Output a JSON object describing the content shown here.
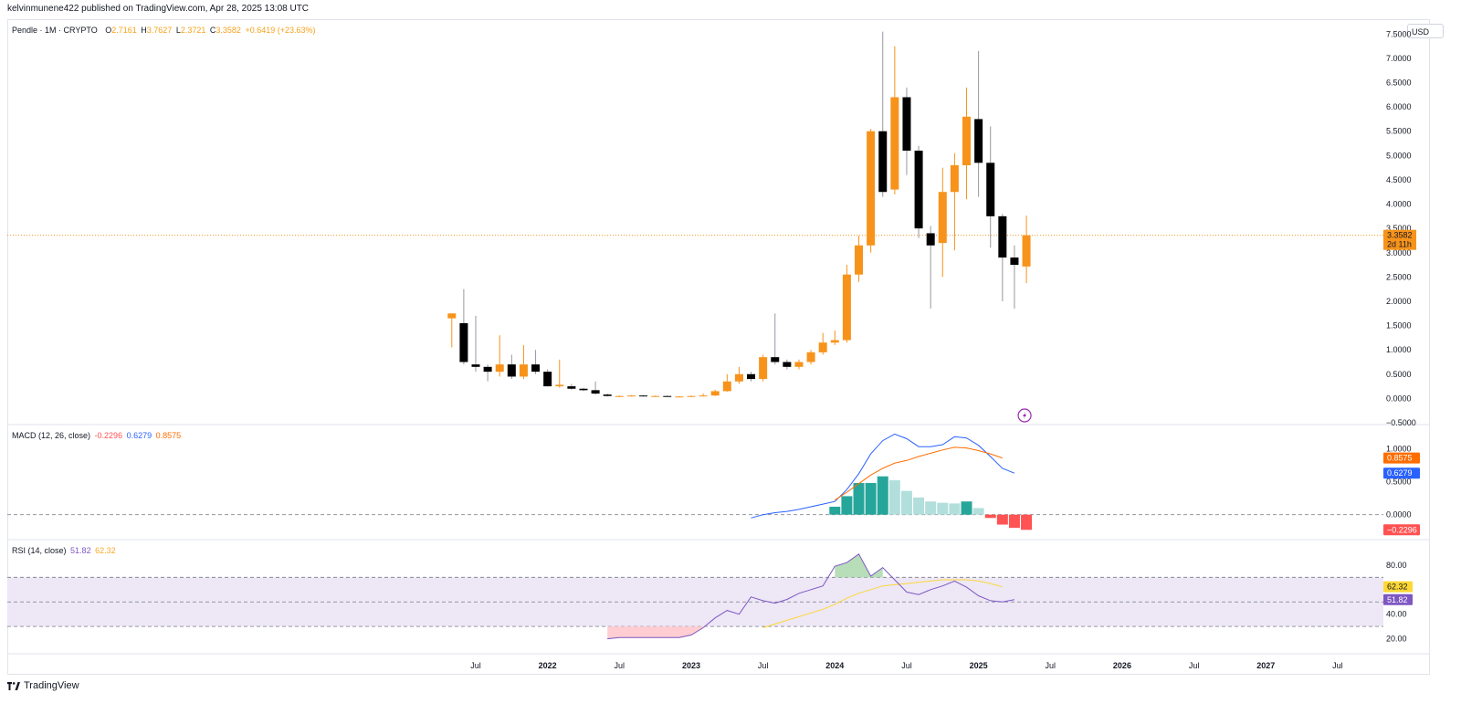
{
  "header": {
    "published_line": "kelvinmunene422 published on TradingView.com, Apr 28, 2025 13:08 UTC"
  },
  "legend": {
    "symbol": "Pendle · 1M · CRYPTO",
    "o_label": "O",
    "o_value": "2.7161",
    "h_label": "H",
    "h_value": "3.7627",
    "l_label": "L",
    "l_value": "2.3721",
    "c_label": "C",
    "c_value": "3.3582",
    "change": "+0.6419 (+23.63%)"
  },
  "currency_button": "USD",
  "price_axis_labels": [
    "7.5000",
    "7.0000",
    "6.5000",
    "6.0000",
    "5.5000",
    "5.0000",
    "4.5000",
    "4.0000",
    "3.5000",
    "3.0000",
    "2.5000",
    "2.0000",
    "1.5000",
    "1.0000",
    "0.5000",
    "0.0000",
    "−0.5000"
  ],
  "last_price_tag": {
    "price": "3.3582",
    "countdown": "2d 11h"
  },
  "macd": {
    "title": "MACD (12, 26, close)",
    "hist_value": "-0.2296",
    "macd_value": "0.6279",
    "signal_value": "0.8575",
    "axis_labels": [
      "1.0000",
      "0.5000",
      "0.0000"
    ],
    "tag_signal": "0.8575",
    "tag_macd": "0.6279",
    "tag_hist": "−0.2296"
  },
  "rsi": {
    "title": "RSI (14, close)",
    "rsi_value": "51.82",
    "ma_value": "62.32",
    "axis_labels": [
      "80.00",
      "40.00",
      "20.00"
    ],
    "tag_ma": "62.32",
    "tag_rsi": "51.82"
  },
  "time_axis_labels": [
    "Jul",
    "2022",
    "Jul",
    "2023",
    "Jul",
    "2024",
    "Jul",
    "2025",
    "Jul",
    "2026",
    "Jul",
    "2027",
    "Jul"
  ],
  "footer": {
    "brand": "TradingView"
  },
  "colors": {
    "up": "#f7931a",
    "down": "#000000",
    "macd_line": "#2962ff",
    "signal_line": "#ff6d00",
    "hist_pos_strong": "#26a69a",
    "hist_pos_weak": "#b2dfdb",
    "hist_neg": "#ff5252",
    "rsi_line": "#7e57c2",
    "rsi_ma": "#fdd835",
    "rsi_band": "#ede7f6"
  },
  "chart_data": [
    {
      "type": "candlestick",
      "title": "Pendle · 1M · CRYPTO",
      "xlabel": "",
      "ylabel": "",
      "ylim": [
        -0.5,
        7.75
      ],
      "candles": [
        {
          "t": "2021-05",
          "o": 1.65,
          "h": 1.75,
          "l": 1.05,
          "c": 1.75
        },
        {
          "t": "2021-06",
          "o": 1.55,
          "h": 2.25,
          "l": 0.7,
          "c": 0.75
        },
        {
          "t": "2021-07",
          "o": 0.7,
          "h": 1.7,
          "l": 0.55,
          "c": 0.65
        },
        {
          "t": "2021-08",
          "o": 0.65,
          "h": 0.7,
          "l": 0.35,
          "c": 0.55
        },
        {
          "t": "2021-09",
          "o": 0.55,
          "h": 1.3,
          "l": 0.45,
          "c": 0.7
        },
        {
          "t": "2021-10",
          "o": 0.7,
          "h": 0.9,
          "l": 0.4,
          "c": 0.45
        },
        {
          "t": "2021-11",
          "o": 0.45,
          "h": 1.1,
          "l": 0.4,
          "c": 0.7
        },
        {
          "t": "2021-12",
          "o": 0.7,
          "h": 1.0,
          "l": 0.5,
          "c": 0.55
        },
        {
          "t": "2022-01",
          "o": 0.55,
          "h": 0.6,
          "l": 0.25,
          "c": 0.25
        },
        {
          "t": "2022-02",
          "o": 0.25,
          "h": 0.8,
          "l": 0.22,
          "c": 0.28
        },
        {
          "t": "2022-03",
          "o": 0.25,
          "h": 0.3,
          "l": 0.18,
          "c": 0.2
        },
        {
          "t": "2022-04",
          "o": 0.2,
          "h": 0.22,
          "l": 0.15,
          "c": 0.17
        },
        {
          "t": "2022-05",
          "o": 0.17,
          "h": 0.35,
          "l": 0.08,
          "c": 0.1
        },
        {
          "t": "2022-06",
          "o": 0.08,
          "h": 0.1,
          "l": 0.04,
          "c": 0.05
        },
        {
          "t": "2022-07",
          "o": 0.04,
          "h": 0.06,
          "l": 0.03,
          "c": 0.05
        },
        {
          "t": "2022-08",
          "o": 0.05,
          "h": 0.07,
          "l": 0.04,
          "c": 0.06
        },
        {
          "t": "2022-09",
          "o": 0.06,
          "h": 0.07,
          "l": 0.04,
          "c": 0.05
        },
        {
          "t": "2022-10",
          "o": 0.05,
          "h": 0.06,
          "l": 0.04,
          "c": 0.05
        },
        {
          "t": "2022-11",
          "o": 0.05,
          "h": 0.06,
          "l": 0.03,
          "c": 0.04
        },
        {
          "t": "2022-12",
          "o": 0.04,
          "h": 0.05,
          "l": 0.03,
          "c": 0.04
        },
        {
          "t": "2023-01",
          "o": 0.04,
          "h": 0.06,
          "l": 0.03,
          "c": 0.05
        },
        {
          "t": "2023-02",
          "o": 0.05,
          "h": 0.1,
          "l": 0.04,
          "c": 0.06
        },
        {
          "t": "2023-03",
          "o": 0.06,
          "h": 0.18,
          "l": 0.05,
          "c": 0.15
        },
        {
          "t": "2023-04",
          "o": 0.15,
          "h": 0.5,
          "l": 0.14,
          "c": 0.35
        },
        {
          "t": "2023-05",
          "o": 0.35,
          "h": 0.65,
          "l": 0.3,
          "c": 0.5
        },
        {
          "t": "2023-06",
          "o": 0.5,
          "h": 0.55,
          "l": 0.35,
          "c": 0.4
        },
        {
          "t": "2023-07",
          "o": 0.4,
          "h": 0.9,
          "l": 0.35,
          "c": 0.85
        },
        {
          "t": "2023-08",
          "o": 0.85,
          "h": 1.75,
          "l": 0.7,
          "c": 0.75
        },
        {
          "t": "2023-09",
          "o": 0.75,
          "h": 0.8,
          "l": 0.6,
          "c": 0.65
        },
        {
          "t": "2023-10",
          "o": 0.65,
          "h": 0.8,
          "l": 0.6,
          "c": 0.75
        },
        {
          "t": "2023-11",
          "o": 0.75,
          "h": 1.0,
          "l": 0.7,
          "c": 0.95
        },
        {
          "t": "2023-12",
          "o": 0.95,
          "h": 1.35,
          "l": 0.9,
          "c": 1.15
        },
        {
          "t": "2024-01",
          "o": 1.15,
          "h": 1.4,
          "l": 1.1,
          "c": 1.2
        },
        {
          "t": "2024-02",
          "o": 1.2,
          "h": 2.75,
          "l": 1.15,
          "c": 2.55
        },
        {
          "t": "2024-03",
          "o": 2.55,
          "h": 3.35,
          "l": 2.4,
          "c": 3.15
        },
        {
          "t": "2024-04",
          "o": 3.15,
          "h": 5.55,
          "l": 3.0,
          "c": 5.5
        },
        {
          "t": "2024-05",
          "o": 5.5,
          "h": 7.55,
          "l": 4.15,
          "c": 4.25
        },
        {
          "t": "2024-06",
          "o": 4.3,
          "h": 7.25,
          "l": 4.2,
          "c": 6.2
        },
        {
          "t": "2024-07",
          "o": 6.2,
          "h": 6.4,
          "l": 4.6,
          "c": 5.1
        },
        {
          "t": "2024-08",
          "o": 5.1,
          "h": 5.2,
          "l": 3.3,
          "c": 3.5
        },
        {
          "t": "2024-09",
          "o": 3.4,
          "h": 3.55,
          "l": 1.85,
          "c": 3.15
        },
        {
          "t": "2024-10",
          "o": 3.2,
          "h": 4.75,
          "l": 2.5,
          "c": 4.25
        },
        {
          "t": "2024-11",
          "o": 4.25,
          "h": 5.05,
          "l": 3.05,
          "c": 4.8
        },
        {
          "t": "2024-12",
          "o": 4.8,
          "h": 6.4,
          "l": 4.1,
          "c": 5.8
        },
        {
          "t": "2025-01",
          "o": 5.75,
          "h": 7.15,
          "l": 4.15,
          "c": 4.85
        },
        {
          "t": "2025-02",
          "o": 4.85,
          "h": 5.6,
          "l": 3.1,
          "c": 3.75
        },
        {
          "t": "2025-03",
          "o": 3.75,
          "h": 3.8,
          "l": 2.0,
          "c": 2.9
        },
        {
          "t": "2025-04",
          "o": 2.9,
          "h": 3.15,
          "l": 1.85,
          "c": 2.75
        },
        {
          "t": "2025-05",
          "o": 2.7161,
          "h": 3.7627,
          "l": 2.3721,
          "c": 3.3582
        }
      ]
    },
    {
      "type": "bar",
      "title": "MACD (12, 26, close)",
      "ylim": [
        -0.35,
        1.35
      ],
      "histogram": [
        {
          "t": "2024-01",
          "v": 0.12
        },
        {
          "t": "2024-02",
          "v": 0.28
        },
        {
          "t": "2024-03",
          "v": 0.48
        },
        {
          "t": "2024-04",
          "v": 0.48
        },
        {
          "t": "2024-05",
          "v": 0.58
        },
        {
          "t": "2024-06",
          "v": 0.52
        },
        {
          "t": "2024-07",
          "v": 0.36
        },
        {
          "t": "2024-08",
          "v": 0.26
        },
        {
          "t": "2024-09",
          "v": 0.2
        },
        {
          "t": "2024-10",
          "v": 0.18
        },
        {
          "t": "2024-11",
          "v": 0.17
        },
        {
          "t": "2024-12",
          "v": 0.2
        },
        {
          "t": "2025-01",
          "v": 0.1
        },
        {
          "t": "2025-02",
          "v": -0.05
        },
        {
          "t": "2025-03",
          "v": -0.15
        },
        {
          "t": "2025-04",
          "v": -0.2
        },
        {
          "t": "2025-05",
          "v": -0.2296
        }
      ],
      "series": [
        {
          "name": "MACD",
          "points": [
            {
              "t": "2023-06",
              "v": -0.05
            },
            {
              "t": "2023-07",
              "v": 0.0
            },
            {
              "t": "2023-08",
              "v": 0.03
            },
            {
              "t": "2023-09",
              "v": 0.05
            },
            {
              "t": "2023-10",
              "v": 0.08
            },
            {
              "t": "2023-11",
              "v": 0.12
            },
            {
              "t": "2023-12",
              "v": 0.16
            },
            {
              "t": "2024-01",
              "v": 0.2
            },
            {
              "t": "2024-02",
              "v": 0.38
            },
            {
              "t": "2024-03",
              "v": 0.62
            },
            {
              "t": "2024-04",
              "v": 0.92
            },
            {
              "t": "2024-05",
              "v": 1.12
            },
            {
              "t": "2024-06",
              "v": 1.22
            },
            {
              "t": "2024-07",
              "v": 1.15
            },
            {
              "t": "2024-08",
              "v": 1.03
            },
            {
              "t": "2024-09",
              "v": 1.03
            },
            {
              "t": "2024-10",
              "v": 1.06
            },
            {
              "t": "2024-11",
              "v": 1.18
            },
            {
              "t": "2024-12",
              "v": 1.16
            },
            {
              "t": "2025-01",
              "v": 1.05
            },
            {
              "t": "2025-02",
              "v": 0.88
            },
            {
              "t": "2025-03",
              "v": 0.7
            },
            {
              "t": "2025-04",
              "v": 0.6279
            }
          ]
        },
        {
          "name": "Signal",
          "points": [
            {
              "t": "2024-01",
              "v": 0.22
            },
            {
              "t": "2024-02",
              "v": 0.34
            },
            {
              "t": "2024-03",
              "v": 0.47
            },
            {
              "t": "2024-04",
              "v": 0.6
            },
            {
              "t": "2024-05",
              "v": 0.7
            },
            {
              "t": "2024-06",
              "v": 0.78
            },
            {
              "t": "2024-07",
              "v": 0.82
            },
            {
              "t": "2024-08",
              "v": 0.88
            },
            {
              "t": "2024-09",
              "v": 0.93
            },
            {
              "t": "2024-10",
              "v": 0.98
            },
            {
              "t": "2024-11",
              "v": 1.02
            },
            {
              "t": "2024-12",
              "v": 1.01
            },
            {
              "t": "2025-01",
              "v": 0.97
            },
            {
              "t": "2025-02",
              "v": 0.92
            },
            {
              "t": "2025-03",
              "v": 0.8575
            }
          ]
        }
      ]
    },
    {
      "type": "line",
      "title": "RSI (14, close)",
      "ylim": [
        10,
        100
      ],
      "bands": [
        30,
        50,
        70
      ],
      "series": [
        {
          "name": "RSI",
          "points": [
            {
              "t": "2022-06",
              "v": 20
            },
            {
              "t": "2022-07",
              "v": 21
            },
            {
              "t": "2022-08",
              "v": 21
            },
            {
              "t": "2022-09",
              "v": 21
            },
            {
              "t": "2022-10",
              "v": 21
            },
            {
              "t": "2022-11",
              "v": 21
            },
            {
              "t": "2022-12",
              "v": 21
            },
            {
              "t": "2023-01",
              "v": 23
            },
            {
              "t": "2023-02",
              "v": 29
            },
            {
              "t": "2023-03",
              "v": 37
            },
            {
              "t": "2023-04",
              "v": 43
            },
            {
              "t": "2023-05",
              "v": 40
            },
            {
              "t": "2023-06",
              "v": 54
            },
            {
              "t": "2023-07",
              "v": 51
            },
            {
              "t": "2023-08",
              "v": 49
            },
            {
              "t": "2023-09",
              "v": 52
            },
            {
              "t": "2023-10",
              "v": 57
            },
            {
              "t": "2023-11",
              "v": 60
            },
            {
              "t": "2023-12",
              "v": 63
            },
            {
              "t": "2024-01",
              "v": 79
            },
            {
              "t": "2024-02",
              "v": 82
            },
            {
              "t": "2024-03",
              "v": 89
            },
            {
              "t": "2024-04",
              "v": 71
            },
            {
              "t": "2024-05",
              "v": 78
            },
            {
              "t": "2024-06",
              "v": 68
            },
            {
              "t": "2024-07",
              "v": 58
            },
            {
              "t": "2024-08",
              "v": 56
            },
            {
              "t": "2024-09",
              "v": 60
            },
            {
              "t": "2024-10",
              "v": 63
            },
            {
              "t": "2024-11",
              "v": 67
            },
            {
              "t": "2024-12",
              "v": 62
            },
            {
              "t": "2025-01",
              "v": 55
            },
            {
              "t": "2025-02",
              "v": 51
            },
            {
              "t": "2025-03",
              "v": 50
            },
            {
              "t": "2025-04",
              "v": 51.82
            }
          ]
        },
        {
          "name": "RSI MA",
          "points": [
            {
              "t": "2023-07",
              "v": 29
            },
            {
              "t": "2023-08",
              "v": 32
            },
            {
              "t": "2023-09",
              "v": 35
            },
            {
              "t": "2023-10",
              "v": 38
            },
            {
              "t": "2023-11",
              "v": 41
            },
            {
              "t": "2023-12",
              "v": 44
            },
            {
              "t": "2024-01",
              "v": 48
            },
            {
              "t": "2024-02",
              "v": 53
            },
            {
              "t": "2024-03",
              "v": 57
            },
            {
              "t": "2024-04",
              "v": 60
            },
            {
              "t": "2024-05",
              "v": 63
            },
            {
              "t": "2024-06",
              "v": 64
            },
            {
              "t": "2024-07",
              "v": 65
            },
            {
              "t": "2024-08",
              "v": 66
            },
            {
              "t": "2024-09",
              "v": 67
            },
            {
              "t": "2024-10",
              "v": 68
            },
            {
              "t": "2024-11",
              "v": 68
            },
            {
              "t": "2024-12",
              "v": 68
            },
            {
              "t": "2025-01",
              "v": 67
            },
            {
              "t": "2025-02",
              "v": 65
            },
            {
              "t": "2025-03",
              "v": 62.32
            }
          ]
        }
      ]
    }
  ]
}
